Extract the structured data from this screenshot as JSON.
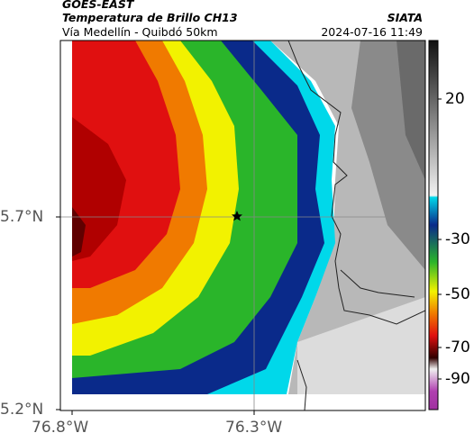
{
  "header": {
    "satellite": "GOES-EAST",
    "product": "Temperatura de Brillo CH13",
    "route": "Vía Medellín - Quibdó 50km",
    "source": "SIATA",
    "datetime": "2024-07-16 11:49"
  },
  "map": {
    "x_ticks": [
      "76.8°W",
      "76.3°W"
    ],
    "y_ticks": [
      "5.7°N",
      "5.2°N"
    ],
    "marker": "star-marker"
  },
  "colorbar": {
    "ticks": [
      "20",
      "-30",
      "-50",
      "-70",
      "-90"
    ],
    "colors": {
      "gray_top": "#111111",
      "gray_bottom": "#f2f2f2",
      "cyan": "#00d8ea",
      "blue": "#0a2a8a",
      "green": "#2ab52a",
      "yellow": "#f2f200",
      "orange": "#f07a00",
      "red": "#e01010",
      "darkred": "#300000",
      "magenta": "#b040b0"
    }
  }
}
